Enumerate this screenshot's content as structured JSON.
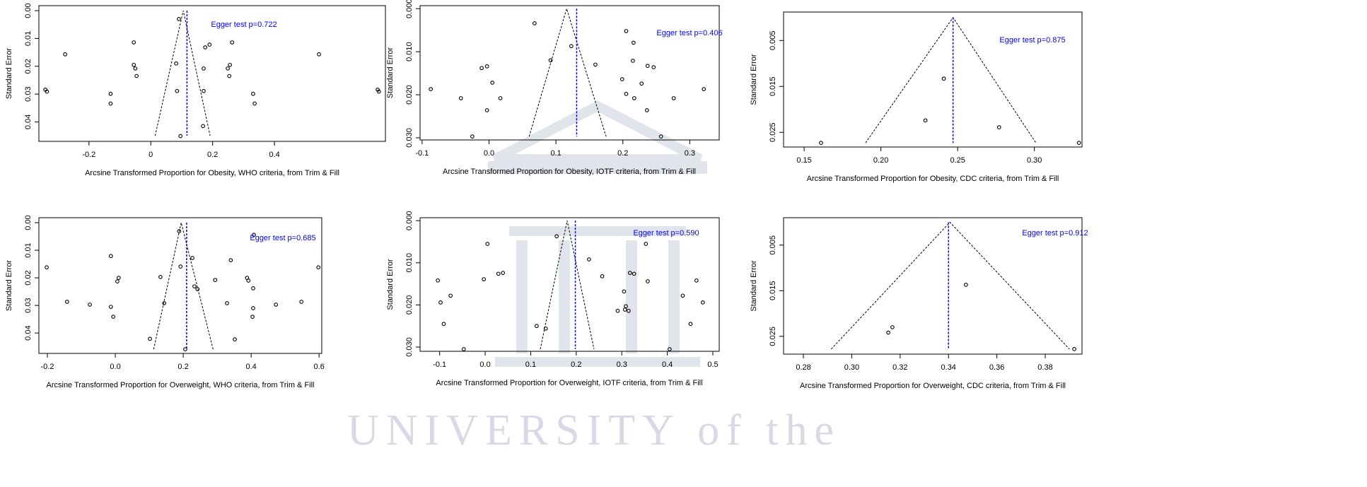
{
  "watermark": "UNIVERSITY of the",
  "chart_data": [
    {
      "type": "scatter",
      "xlabel": "Arcsine Transformed  Proportion for Obesity, WHO criteria, from Trim & Fill",
      "ylabel": "Standard Error",
      "annotation": "Egger test p=0.722",
      "x": [
        -0.341,
        -0.336,
        -0.277,
        -0.13,
        -0.13,
        -0.055,
        -0.055,
        -0.05,
        -0.046,
        0.091,
        0.082,
        0.085,
        0.096,
        0.176,
        0.19,
        0.171,
        0.171,
        0.169,
        0.263,
        0.249,
        0.256,
        0.254,
        0.331,
        0.336,
        0.544,
        0.734,
        0.738
      ],
      "y": [
        0.0284,
        0.0291,
        0.0157,
        0.0299,
        0.0334,
        0.0114,
        0.0195,
        0.0208,
        0.0235,
        0.003,
        0.019,
        0.0289,
        0.0451,
        0.0132,
        0.0122,
        0.0208,
        0.0289,
        0.0415,
        0.0114,
        0.0208,
        0.0195,
        0.0235,
        0.0299,
        0.0334,
        0.0157,
        0.0284,
        0.0291
      ],
      "funnel": {
        "x": [
          0.014,
          0.105,
          0.192
        ],
        "y": [
          0.045,
          0,
          0.045
        ]
      },
      "reference_x": 0.117,
      "xlim": [
        -0.362,
        0.759
      ],
      "ylim": [
        -0.0018,
        0.047
      ],
      "y_inverted": true,
      "xticks": [
        -0.2,
        0,
        0.2,
        0.4
      ],
      "yticks": [
        {
          "value": 0,
          "label": "0.00"
        },
        0.01,
        0.02,
        0.03,
        0.04
      ],
      "point_color": "#000000",
      "funnel_color": "#000000",
      "reference_color": "#0000ff",
      "annotation_color": "#0000ff"
    },
    {
      "type": "scatter",
      "xlabel": "Arcsine Transformed  Proportion for Obesity, IOTF criteria, from Trim & Fill",
      "ylabel": "Standard Error",
      "annotation": "Egger test p=0.406",
      "x": [
        -0.087,
        -0.042,
        -0.011,
        -0.003,
        0.005,
        -0.003,
        0.017,
        -0.025,
        0.068,
        0.092,
        0.123,
        0.159,
        0.199,
        0.205,
        0.216,
        0.205,
        0.215,
        0.217,
        0.228,
        0.237,
        0.246,
        0.236,
        0.257,
        0.276,
        0.321
      ],
      "y": [
        0.0187,
        0.0208,
        0.0138,
        0.0134,
        0.0172,
        0.0236,
        0.0208,
        0.0297,
        0.0034,
        0.012,
        0.0087,
        0.013,
        0.0164,
        0.0052,
        0.0079,
        0.0198,
        0.0121,
        0.0208,
        0.0174,
        0.0133,
        0.0136,
        0.0236,
        0.0297,
        0.0208,
        0.0187
      ],
      "funnel": {
        "x": [
          0.06,
          0.116,
          0.175
        ],
        "y": [
          0.0297,
          0,
          0.0297
        ]
      },
      "reference_x": 0.131,
      "xlim": [
        -0.103,
        0.344
      ],
      "ylim": [
        -0.0007,
        0.0305
      ],
      "y_inverted": true,
      "xticks": [
        -0.1,
        {
          "value": 0,
          "label": "0.0"
        },
        0.1,
        0.2,
        0.3
      ],
      "yticks": [
        {
          "value": 0,
          "label": "0.000"
        },
        {
          "value": 0.01,
          "label": "0.010"
        },
        {
          "value": 0.02,
          "label": "0.020"
        },
        {
          "value": 0.03,
          "label": "0.030"
        }
      ],
      "point_color": "#000000",
      "funnel_color": "#000000",
      "reference_color": "#0000ff",
      "annotation_color": "#0000ff"
    },
    {
      "type": "scatter",
      "xlabel": "Arcsine Transformed  Proportion for Obesity, CDC criteria, from Trim & Fill",
      "ylabel": "Standard Error",
      "annotation": "Egger test p=0.875",
      "x": [
        0.161,
        0.229,
        0.241,
        0.277,
        0.329
      ],
      "y": [
        0.0273,
        0.0224,
        0.0133,
        0.0239,
        0.0273
      ],
      "funnel": {
        "x": [
          0.19,
          0.247,
          0.301
        ],
        "y": [
          0.0273,
          0,
          0.0273
        ]
      },
      "reference_x": 0.247,
      "xlim": [
        0.1366,
        0.331
      ],
      "ylim": [
        -0.0012,
        0.0282
      ],
      "y_inverted": true,
      "xticks": [
        0.15,
        {
          "value": 0.2,
          "label": "0.20"
        },
        0.25,
        {
          "value": 0.3,
          "label": "0.30"
        }
      ],
      "yticks": [
        0.005,
        0.015,
        0.025
      ],
      "point_color": "#000000",
      "funnel_color": "#000000",
      "reference_color": "#0000ff",
      "annotation_color": "#0000ff"
    },
    {
      "type": "scatter",
      "xlabel": "Arcsine Transformed  Proportion for Overweight,  WHO criteria, from Trim & Fill",
      "ylabel": "Standard Error",
      "annotation": "Egger test p=0.685",
      "x": [
        -0.202,
        -0.142,
        -0.075,
        -0.013,
        -0.013,
        -0.006,
        0.01,
        0.006,
        0.102,
        0.188,
        0.192,
        0.133,
        0.144,
        0.206,
        0.227,
        0.233,
        0.242,
        0.294,
        0.329,
        0.34,
        0.352,
        0.408,
        0.388,
        0.392,
        0.406,
        0.404,
        0.406,
        0.473,
        0.548,
        0.598
      ],
      "y": [
        0.0162,
        0.0287,
        0.0297,
        0.0121,
        0.0305,
        0.0341,
        0.02,
        0.0213,
        0.0421,
        0.0031,
        0.0159,
        0.0197,
        0.0292,
        0.0459,
        0.0128,
        0.0231,
        0.0241,
        0.0208,
        0.0292,
        0.0136,
        0.0423,
        0.0044,
        0.02,
        0.021,
        0.031,
        0.0341,
        0.0238,
        0.0297,
        0.0287,
        0.0162
      ],
      "funnel": {
        "x": [
          0.113,
          0.194,
          0.288
        ],
        "y": [
          0.0459,
          0,
          0.0459
        ]
      },
      "reference_x": 0.21,
      "xlim": [
        -0.225,
        0.608
      ],
      "ylim": [
        -0.0018,
        0.0474
      ],
      "y_inverted": true,
      "xticks": [
        -0.2,
        {
          "value": 0,
          "label": "0.0"
        },
        0.2,
        0.4,
        0.6
      ],
      "yticks": [
        {
          "value": 0,
          "label": "0.00"
        },
        0.01,
        0.02,
        0.03,
        0.04
      ],
      "point_color": "#000000",
      "funnel_color": "#000000",
      "reference_color": "#0000ff",
      "annotation_color": "#0000ff"
    },
    {
      "type": "scatter",
      "xlabel": "Arcsine Transformed  Proportion for Overweight,  IOTF criteria, from Trim & Fill",
      "ylabel": "Standard Error",
      "annotation": "Egger test p=0.590",
      "x": [
        -0.104,
        -0.098,
        -0.091,
        -0.076,
        -0.047,
        -0.003,
        0.005,
        0.029,
        0.039,
        0.113,
        0.133,
        0.157,
        0.228,
        0.257,
        0.307,
        0.305,
        0.309,
        0.318,
        0.327,
        0.291,
        0.315,
        0.353,
        0.357,
        0.434,
        0.451,
        0.464,
        0.478,
        0.405
      ],
      "y": [
        0.0142,
        0.0194,
        0.0245,
        0.0178,
        0.0305,
        0.0139,
        0.0055,
        0.0126,
        0.0124,
        0.025,
        0.0256,
        0.0037,
        0.0092,
        0.0132,
        0.0211,
        0.0168,
        0.0203,
        0.0124,
        0.0126,
        0.0214,
        0.0214,
        0.0055,
        0.0144,
        0.0178,
        0.0245,
        0.0142,
        0.0194,
        0.0305
      ],
      "funnel": {
        "x": [
          0.121,
          0.18,
          0.239
        ],
        "y": [
          0.0305,
          0,
          0.0305
        ]
      },
      "reference_x": 0.198,
      "xlim": [
        -0.143,
        0.514
      ],
      "ylim": [
        -0.0007,
        0.031
      ],
      "y_inverted": true,
      "xticks": [
        -0.1,
        {
          "value": 0,
          "label": "0.0"
        },
        0.1,
        0.2,
        0.3,
        0.4,
        0.5
      ],
      "yticks": [
        {
          "value": 0,
          "label": "0.000"
        },
        {
          "value": 0.01,
          "label": "0.010"
        },
        {
          "value": 0.02,
          "label": "0.020"
        },
        {
          "value": 0.03,
          "label": "0.030"
        }
      ],
      "point_color": "#000000",
      "funnel_color": "#000000",
      "reference_color": "#0000ff",
      "annotation_color": "#0000ff"
    },
    {
      "type": "scatter",
      "xlabel": "Arcsine Transformed  Proportion for Overweight,  CDC criteria, from Trim & Fill",
      "ylabel": "Standard Error",
      "annotation": "Egger test p=0.912",
      "x": [
        0.3151,
        0.3168,
        0.3472,
        0.392
      ],
      "y": [
        0.0242,
        0.023,
        0.0137,
        0.0278
      ],
      "funnel": {
        "x": [
          0.2915,
          0.3406,
          0.39
        ],
        "y": [
          0.0278,
          0,
          0.0278
        ]
      },
      "reference_x": 0.34,
      "xlim": [
        0.2718,
        0.3952
      ],
      "ylim": [
        -0.001,
        0.0289
      ],
      "y_inverted": true,
      "xticks": [
        0.28,
        {
          "value": 0.3,
          "label": "0.30"
        },
        0.32,
        0.34,
        0.36,
        0.38
      ],
      "yticks": [
        0.005,
        0.015,
        0.025
      ],
      "point_color": "#000000",
      "funnel_color": "#000000",
      "reference_color": "#0000ff",
      "annotation_color": "#0000ff"
    }
  ]
}
